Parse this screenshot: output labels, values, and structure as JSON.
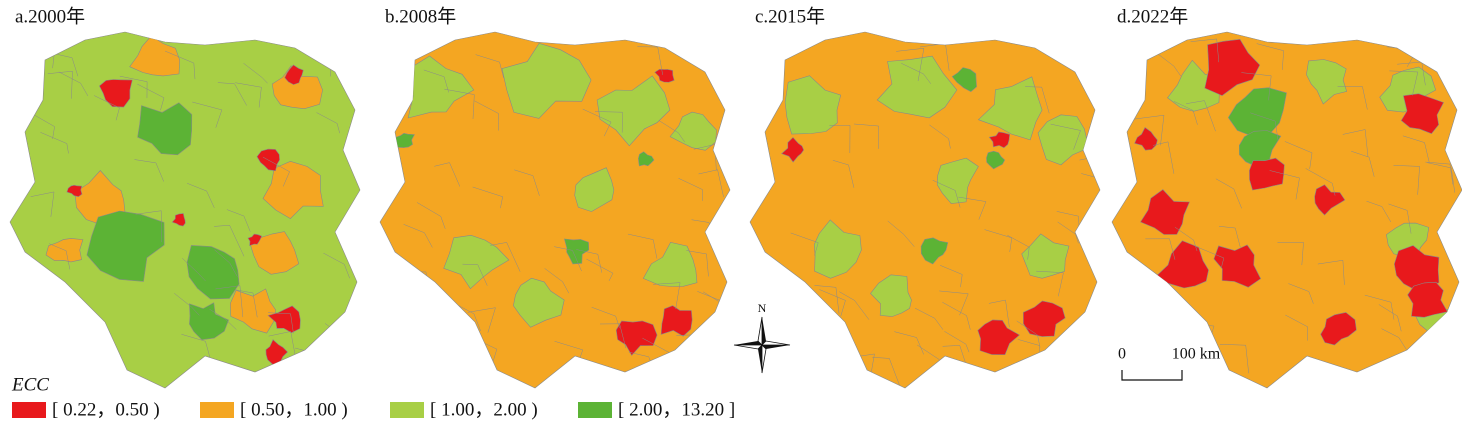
{
  "panels": [
    {
      "label": "a.2000年"
    },
    {
      "label": "b.2008年"
    },
    {
      "label": "c.2015年"
    },
    {
      "label": "d.2022年"
    }
  ],
  "legend": {
    "title": "ECC",
    "items": [
      {
        "label": "[ 0.22，0.50 )",
        "color": "#e8191c"
      },
      {
        "label": "[ 0.50，1.00 )",
        "color": "#f4a622"
      },
      {
        "label": "[ 1.00，2.00 )",
        "color": "#a8cf45"
      },
      {
        "label": "[ 2.00，13.20 ]",
        "color": "#5cb335"
      }
    ]
  },
  "north_arrow": "N",
  "scale_bar": {
    "labels": [
      "0",
      "100 km"
    ]
  }
}
